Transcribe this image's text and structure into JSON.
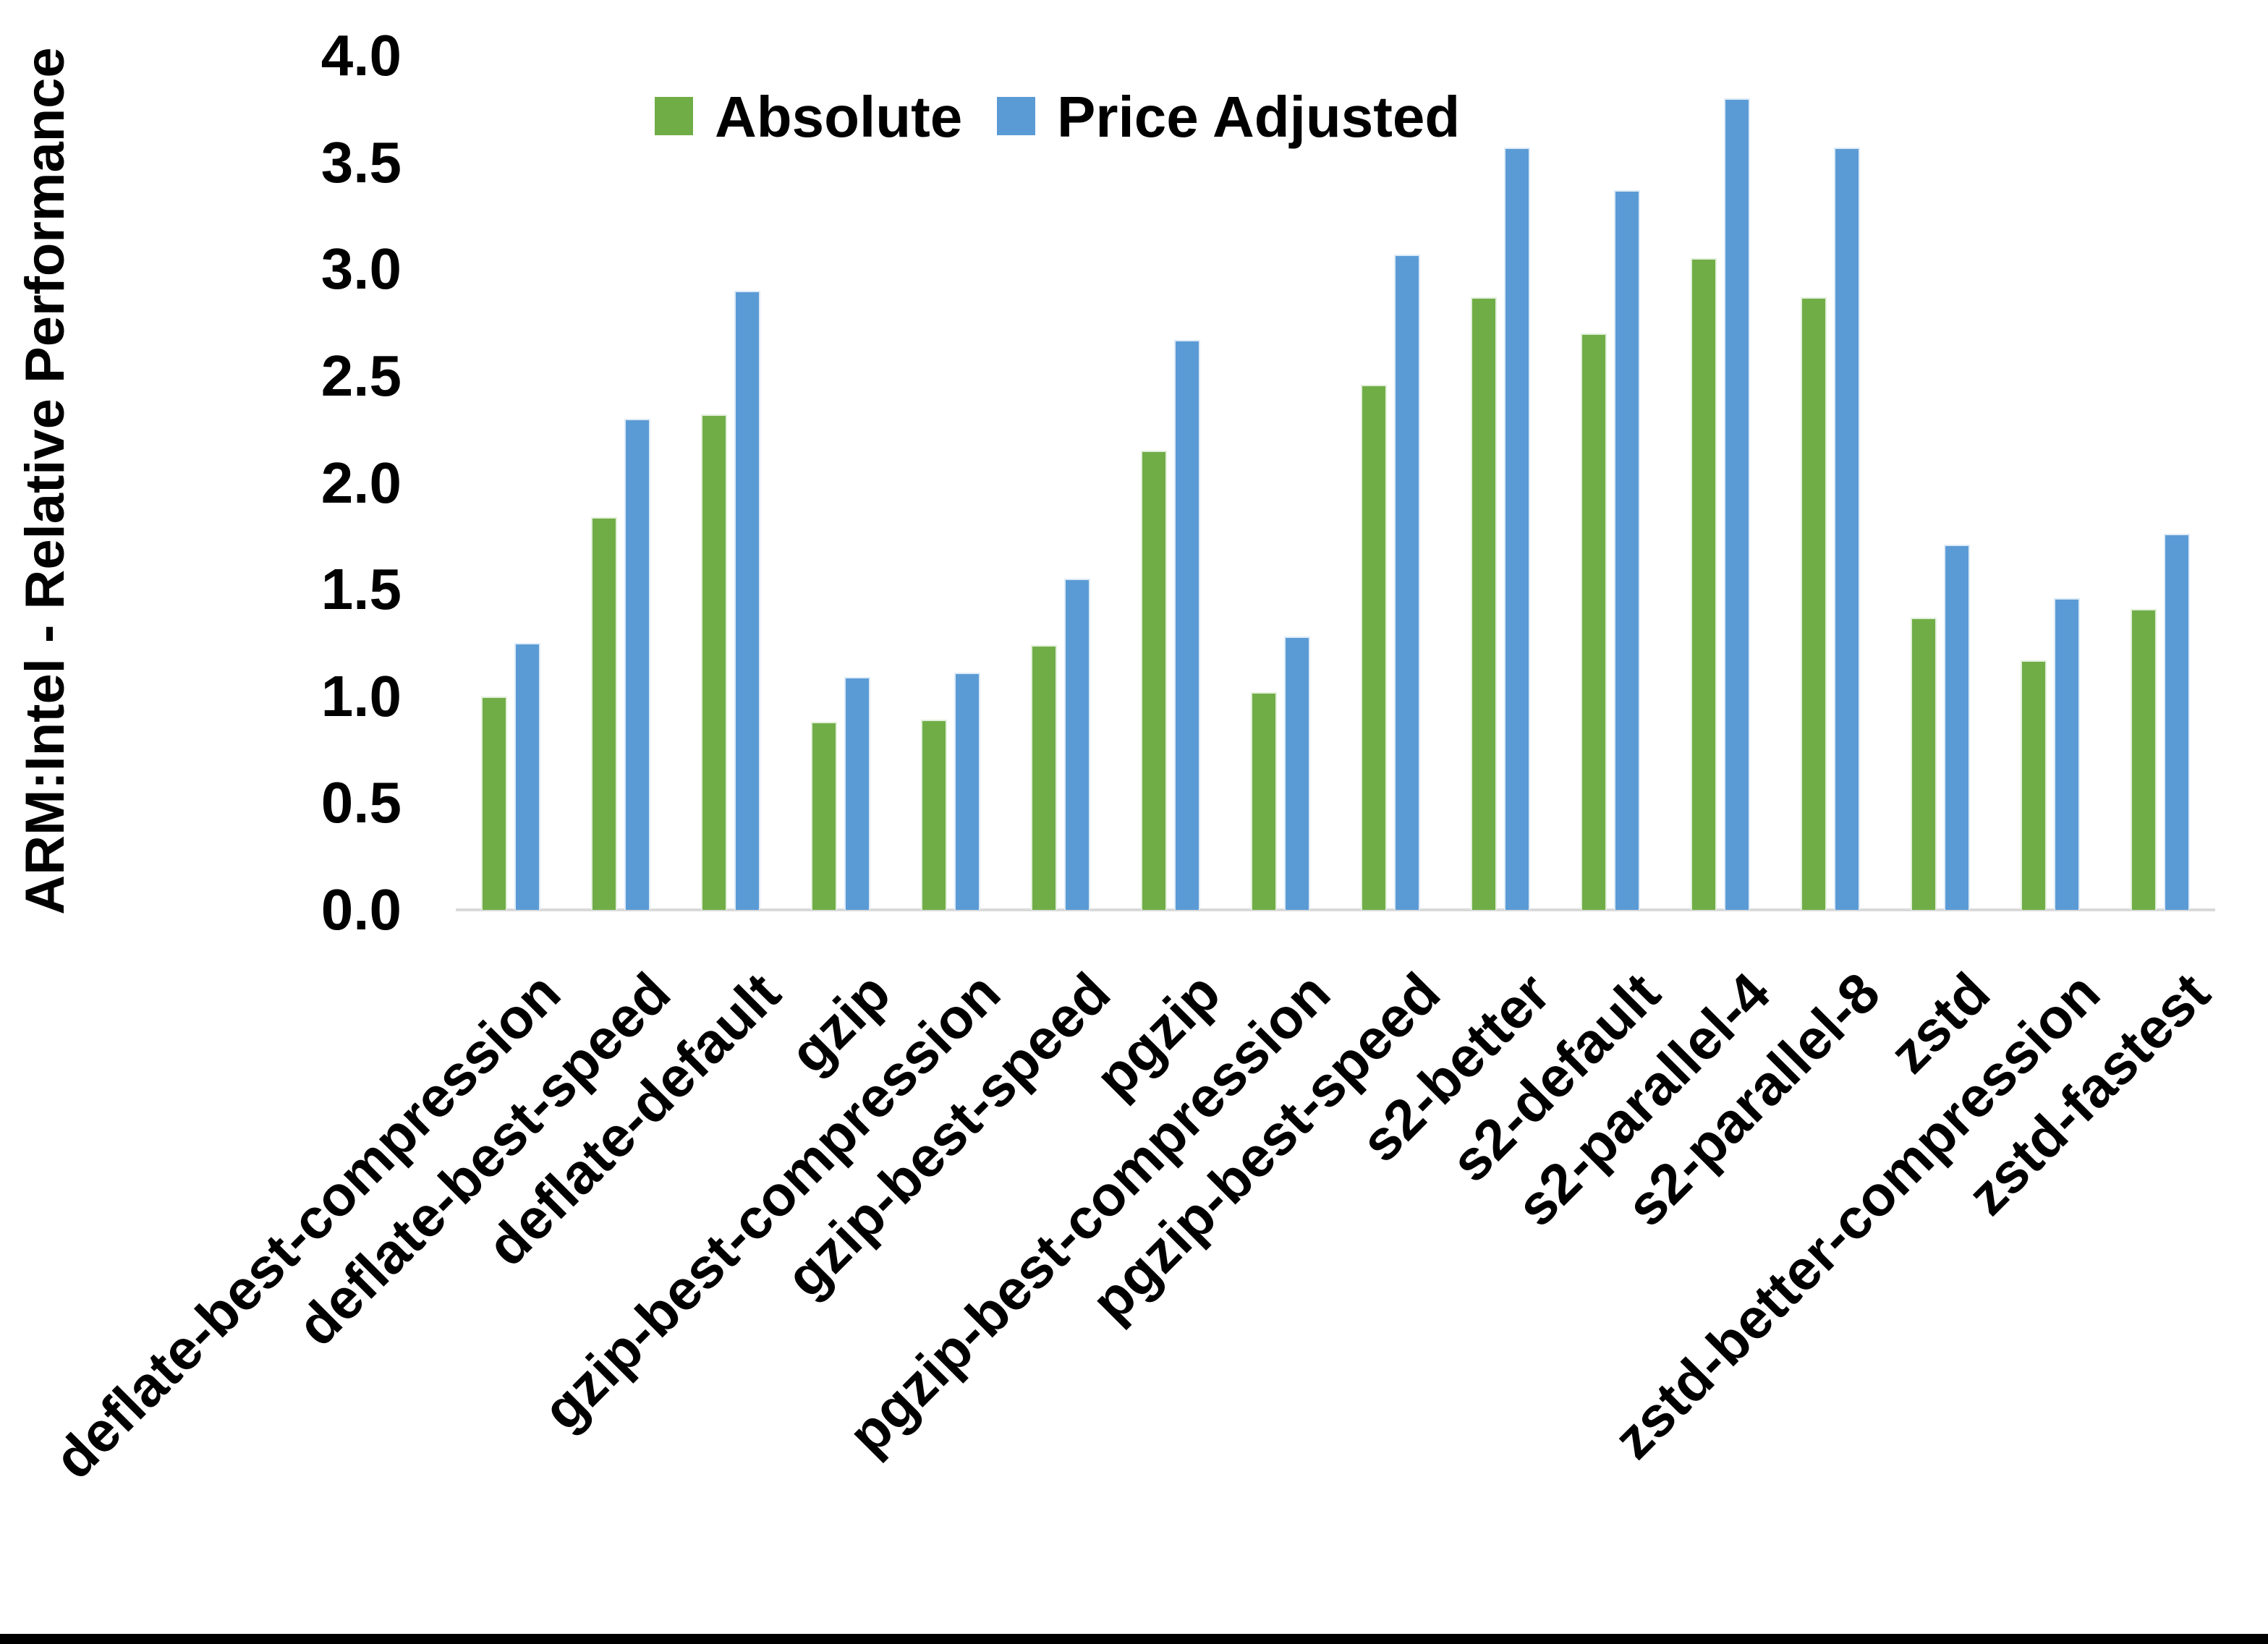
{
  "figure": {
    "background_color": "#FFFFFF",
    "bottom_border_color": "#000000",
    "axis_line_color": "#D9D9D9",
    "text_color": "#000000"
  },
  "chart_data": {
    "type": "bar",
    "title": "",
    "xlabel": "",
    "ylabel": "ARM:Intel - Relative Performance",
    "ylim": [
      0.0,
      4.0
    ],
    "ytick_step": 0.5,
    "ytick_labels": [
      "0.0",
      "0.5",
      "1.0",
      "1.5",
      "2.0",
      "2.5",
      "3.0",
      "3.5",
      "4.0"
    ],
    "grid": false,
    "legend_position": "top-center",
    "categories": [
      "deflate-best-compression",
      "deflate-best-speed",
      "deflate-default",
      "gzip",
      "gzip-best-compression",
      "gzip-best-speed",
      "pgzip",
      "pgzip-best-compression",
      "pgzip-best-speed",
      "s2-better",
      "s2-default",
      "s2-parallel-4",
      "s2-parallel-8",
      "zstd",
      "zstd-better-compression",
      "zstd-fastest"
    ],
    "series": [
      {
        "name": "Absolute",
        "color": "#70AD47",
        "border_color": "#E2EFDA",
        "values": [
          1.0,
          1.84,
          2.32,
          0.88,
          0.89,
          1.24,
          2.15,
          1.02,
          2.46,
          2.87,
          2.7,
          3.05,
          2.87,
          1.37,
          1.17,
          1.41
        ]
      },
      {
        "name": "Price Adjusted",
        "color": "#5B9BD5",
        "border_color": "#DEEBF7",
        "values": [
          1.25,
          2.3,
          2.9,
          1.09,
          1.11,
          1.55,
          2.67,
          1.28,
          3.07,
          3.57,
          3.37,
          3.8,
          3.57,
          1.71,
          1.46,
          1.76
        ]
      }
    ]
  }
}
